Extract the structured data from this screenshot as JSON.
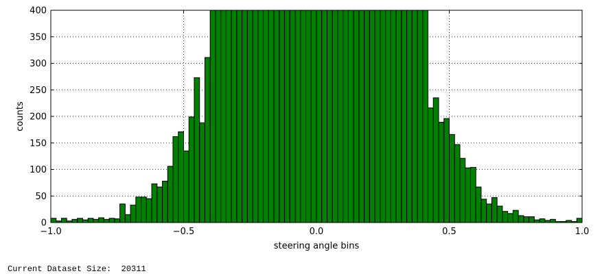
{
  "chart_data": {
    "type": "bar",
    "title": "",
    "xlabel": "steering angle bins",
    "ylabel": "counts",
    "xlim": [
      -1.0,
      1.0
    ],
    "ylim": [
      0,
      400
    ],
    "xticks": [
      -1.0,
      -0.5,
      0.0,
      0.5,
      1.0
    ],
    "xtick_labels": [
      "−1.0",
      "−0.5",
      "0.0",
      "0.5",
      "1.0"
    ],
    "yticks": [
      0,
      50,
      100,
      150,
      200,
      250,
      300,
      350,
      400
    ],
    "ytick_labels": [
      "0",
      "50",
      "100",
      "150",
      "200",
      "250",
      "300",
      "350",
      "400"
    ],
    "grid": true,
    "legend": false,
    "bar_color": "#008000",
    "bin_edges_start": -1.0,
    "bin_width": 0.02,
    "values": [
      8,
      3,
      8,
      3,
      6,
      8,
      5,
      8,
      6,
      9,
      6,
      8,
      7,
      35,
      15,
      33,
      48,
      48,
      45,
      73,
      67,
      78,
      106,
      162,
      171,
      135,
      199,
      273,
      188,
      311,
      400,
      400,
      400,
      400,
      400,
      400,
      400,
      400,
      400,
      400,
      400,
      400,
      400,
      400,
      400,
      400,
      400,
      400,
      400,
      400,
      400,
      400,
      400,
      400,
      400,
      400,
      400,
      400,
      400,
      400,
      400,
      400,
      400,
      400,
      400,
      400,
      400,
      400,
      400,
      400,
      400,
      216,
      235,
      189,
      196,
      166,
      147,
      121,
      103,
      104,
      67,
      44,
      35,
      47,
      31,
      21,
      17,
      23,
      13,
      11,
      11,
      5,
      7,
      4,
      6,
      2,
      2,
      4,
      2,
      8
    ]
  },
  "footer": {
    "label": "Current Dataset Size:",
    "value": "20311"
  }
}
